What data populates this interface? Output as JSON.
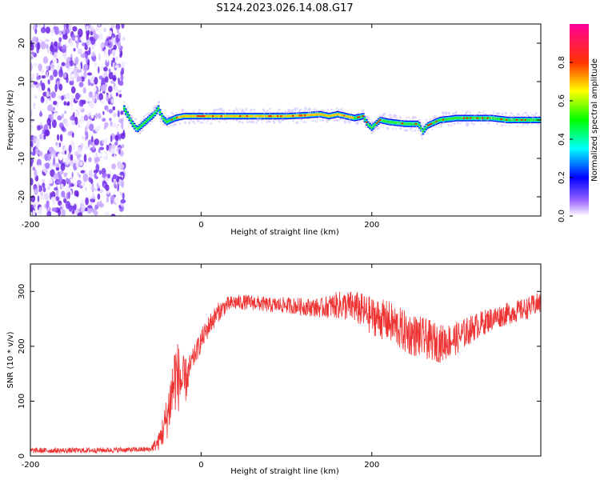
{
  "title": "S124.2023.026.14.08.G17",
  "chart_data": [
    {
      "type": "heatmap",
      "xlabel": "Height of straight line (km)",
      "ylabel": "Frequency (Hz)",
      "xlim": [
        -200,
        398
      ],
      "ylim": [
        -25,
        25
      ],
      "x_ticks": [
        "-200",
        "0",
        "200"
      ],
      "y_ticks": [
        "20",
        "10",
        "0",
        "-10",
        "-20"
      ],
      "grid": false,
      "colorbar": {
        "label": "Normalized spectral amplitude",
        "range": [
          0,
          1
        ],
        "ticks": [
          "0.0",
          "0.2",
          "0.4",
          "0.6",
          "0.8"
        ],
        "colors": [
          "#ffffff",
          "#5500ff",
          "#0000ff",
          "#00ffff",
          "#00ff00",
          "#ffff00",
          "#ff0000",
          "#ff00aa"
        ]
      },
      "noise_region_x": [
        -200,
        -90
      ],
      "ridge": {
        "x": [
          -90,
          -85,
          -80,
          -75,
          -70,
          -65,
          -60,
          -55,
          -50,
          -45,
          -40,
          -30,
          -20,
          0,
          20,
          40,
          60,
          80,
          100,
          120,
          140,
          150,
          160,
          180,
          190,
          195,
          200,
          210,
          220,
          240,
          255,
          260,
          265,
          270,
          280,
          300,
          320,
          340,
          360,
          380,
          398
        ],
        "y": [
          3,
          1,
          -1,
          -2.5,
          -1.5,
          -0.5,
          0.5,
          1.5,
          3,
          0.5,
          -0.5,
          0.5,
          1,
          1,
          1,
          1,
          1,
          1,
          1,
          1.2,
          1.5,
          1,
          1.5,
          0.5,
          1,
          -1,
          -2,
          0,
          -0.5,
          -1,
          -1,
          -3,
          -1.5,
          -1,
          0,
          0.5,
          0.5,
          0.5,
          0,
          0,
          0
        ]
      }
    },
    {
      "type": "line",
      "xlabel": "Height of straight line (km)",
      "ylabel": "SNR (10 * v/v)",
      "xlim": [
        -200,
        398
      ],
      "ylim": [
        0,
        350
      ],
      "x_ticks": [
        "-200",
        "0",
        "200"
      ],
      "y_ticks": [
        "300",
        "200",
        "100",
        "0"
      ],
      "grid": false,
      "series": [
        {
          "color": "#ee3333",
          "x": [
            -200,
            -150,
            -100,
            -60,
            -50,
            -45,
            -40,
            -35,
            -30,
            -25,
            -20,
            -15,
            -10,
            0,
            10,
            20,
            30,
            40,
            60,
            80,
            100,
            120,
            140,
            160,
            180,
            200,
            220,
            240,
            260,
            280,
            300,
            320,
            340,
            360,
            380,
            398
          ],
          "y": [
            10,
            10,
            11,
            12,
            25,
            45,
            70,
            110,
            150,
            140,
            130,
            150,
            175,
            210,
            240,
            262,
            275,
            280,
            280,
            275,
            275,
            272,
            270,
            275,
            272,
            255,
            245,
            225,
            215,
            205,
            215,
            235,
            250,
            260,
            268,
            280
          ],
          "noise": [
            5,
            5,
            5,
            5,
            15,
            30,
            40,
            60,
            70,
            60,
            50,
            30,
            20,
            20,
            20,
            18,
            15,
            14,
            14,
            14,
            15,
            16,
            18,
            25,
            30,
            35,
            38,
            40,
            38,
            35,
            30,
            25,
            22,
            20,
            20,
            20
          ]
        }
      ]
    }
  ]
}
